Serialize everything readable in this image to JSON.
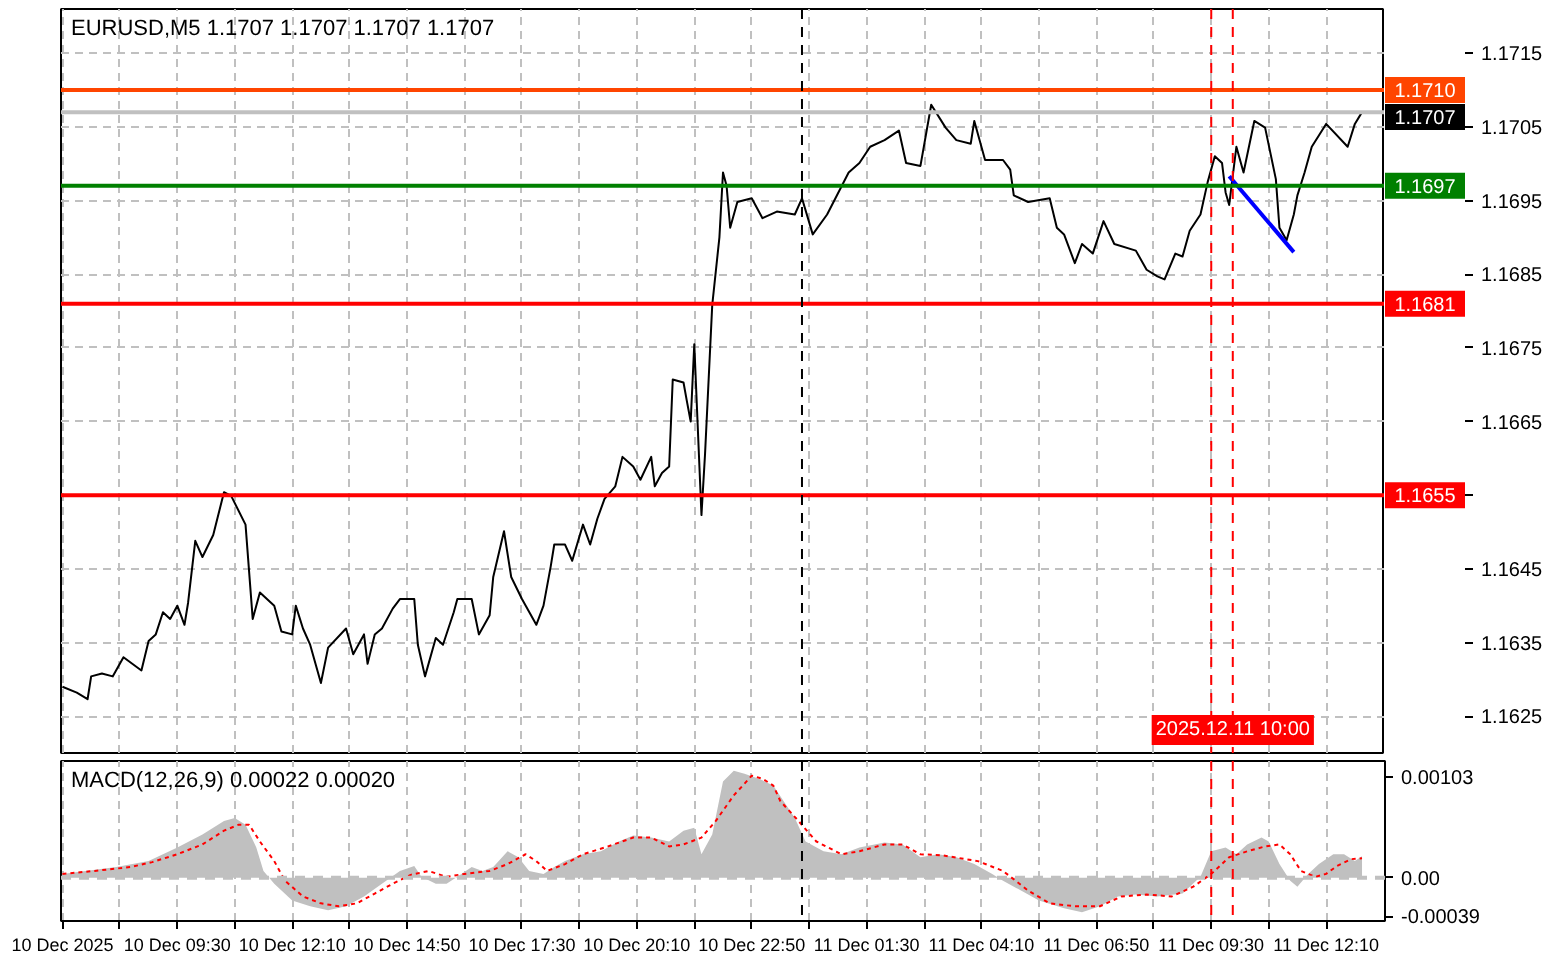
{
  "chart_data": [
    {
      "type": "line",
      "title": "EURUSD,M5 1.1707 1.1707 1.1707 1.1707",
      "xlim": [
        "2025-12-10T06:48",
        "2025-12-11T13:32"
      ],
      "ylim": [
        1.162,
        1.1721
      ],
      "xticks": [
        "2025-12-10T06:50",
        "2025-12-10T08:10",
        "2025-12-10T09:30",
        "2025-12-10T10:50",
        "2025-12-10T12:10",
        "2025-12-10T13:30",
        "2025-12-10T14:50",
        "2025-12-10T16:10",
        "2025-12-10T17:30",
        "2025-12-10T18:50",
        "2025-12-10T20:10",
        "2025-12-10T21:30",
        "2025-12-10T22:50",
        "2025-12-11T00:10",
        "2025-12-11T01:30",
        "2025-12-11T02:50",
        "2025-12-11T04:10",
        "2025-12-11T05:30",
        "2025-12-11T06:50",
        "2025-12-11T08:10",
        "2025-12-11T09:30",
        "2025-12-11T10:50",
        "2025-12-11T12:10"
      ],
      "yticks": [
        1.1625,
        1.1635,
        1.1645,
        {
          "value": 1.1655,
          "label": null
        },
        1.1665,
        1.1675,
        1.1685,
        1.1695,
        1.1705,
        1.1715
      ],
      "tick_labels": "y",
      "grid": true,
      "series": [
        {
          "color": "#000000",
          "x": [
            "2025-12-10T06:50",
            "2025-12-10T07:10",
            "2025-12-10T07:25",
            "2025-12-10T07:30",
            "2025-12-10T07:45",
            "2025-12-10T08:00",
            "2025-12-10T08:15",
            "2025-12-10T08:40",
            "2025-12-10T08:50",
            "2025-12-10T09:00",
            "2025-12-10T09:10",
            "2025-12-10T09:20",
            "2025-12-10T09:30",
            "2025-12-10T09:40",
            "2025-12-10T09:45",
            "2025-12-10T09:55",
            "2025-12-10T10:05",
            "2025-12-10T10:20",
            "2025-12-10T10:35",
            "2025-12-10T10:45",
            "2025-12-10T11:05",
            "2025-12-10T11:15",
            "2025-12-10T11:25",
            "2025-12-10T11:45",
            "2025-12-10T11:55",
            "2025-12-10T12:10",
            "2025-12-10T12:15",
            "2025-12-10T12:25",
            "2025-12-10T12:35",
            "2025-12-10T12:50",
            "2025-12-10T13:00",
            "2025-12-10T13:25",
            "2025-12-10T13:35",
            "2025-12-10T13:50",
            "2025-12-10T13:55",
            "2025-12-10T14:05",
            "2025-12-10T14:15",
            "2025-12-10T14:30",
            "2025-12-10T14:40",
            "2025-12-10T15:00",
            "2025-12-10T15:05",
            "2025-12-10T15:15",
            "2025-12-10T15:30",
            "2025-12-10T15:40",
            "2025-12-10T15:55",
            "2025-12-10T16:00",
            "2025-12-10T16:20",
            "2025-12-10T16:30",
            "2025-12-10T16:45",
            "2025-12-10T16:50",
            "2025-12-10T17:05",
            "2025-12-10T17:15",
            "2025-12-10T17:30",
            "2025-12-10T17:50",
            "2025-12-10T18:00",
            "2025-12-10T18:10",
            "2025-12-10T18:15",
            "2025-12-10T18:30",
            "2025-12-10T18:40",
            "2025-12-10T18:55",
            "2025-12-10T19:05",
            "2025-12-10T19:15",
            "2025-12-10T19:25",
            "2025-12-10T19:40",
            "2025-12-10T19:50",
            "2025-12-10T20:05",
            "2025-12-10T20:15",
            "2025-12-10T20:30",
            "2025-12-10T20:35",
            "2025-12-10T20:45",
            "2025-12-10T20:55",
            "2025-12-10T21:00",
            "2025-12-10T21:15",
            "2025-12-10T21:20",
            "2025-12-10T21:25",
            "2025-12-10T21:30",
            "2025-12-10T21:40",
            "2025-12-10T21:45",
            "2025-12-10T21:55",
            "2025-12-10T22:05",
            "2025-12-10T22:10",
            "2025-12-10T22:15",
            "2025-12-10T22:20",
            "2025-12-10T22:30",
            "2025-12-10T22:50",
            "2025-12-10T23:05",
            "2025-12-10T23:25",
            "2025-12-10T23:50",
            "2025-12-11T00:00",
            "2025-12-11T00:15",
            "2025-12-11T00:35",
            "2025-12-11T01:05",
            "2025-12-11T01:20",
            "2025-12-11T01:35",
            "2025-12-11T01:55",
            "2025-12-11T02:15",
            "2025-12-11T02:25",
            "2025-12-11T02:45",
            "2025-12-11T03:00",
            "2025-12-11T03:20",
            "2025-12-11T03:35",
            "2025-12-11T03:55",
            "2025-12-11T04:00",
            "2025-12-11T04:15",
            "2025-12-11T04:40",
            "2025-12-11T04:50",
            "2025-12-11T04:55",
            "2025-12-11T05:15",
            "2025-12-11T05:45",
            "2025-12-11T05:55",
            "2025-12-11T06:05",
            "2025-12-11T06:20",
            "2025-12-11T06:30",
            "2025-12-11T06:45",
            "2025-12-11T07:00",
            "2025-12-11T07:15",
            "2025-12-11T07:45",
            "2025-12-11T08:00",
            "2025-12-11T08:15",
            "2025-12-11T08:25",
            "2025-12-11T08:40",
            "2025-12-11T08:50",
            "2025-12-11T09:00",
            "2025-12-11T09:15",
            "2025-12-11T09:25",
            "2025-12-11T09:35",
            "2025-12-11T09:45",
            "2025-12-11T09:50",
            "2025-12-11T09:55",
            "2025-12-11T10:05",
            "2025-12-11T10:15",
            "2025-12-11T10:30",
            "2025-12-11T10:45",
            "2025-12-11T11:00",
            "2025-12-11T11:05",
            "2025-12-11T11:15",
            "2025-12-11T11:25",
            "2025-12-11T11:30",
            "2025-12-11T11:40",
            "2025-12-11T11:50",
            "2025-12-11T12:10",
            "2025-12-11T12:40",
            "2025-12-11T12:50",
            "2025-12-11T13:00"
          ],
          "values": [
            1.1629,
            1.16282,
            1.16273,
            1.16304,
            1.16308,
            1.16304,
            1.1633,
            1.16312,
            1.16352,
            1.16361,
            1.16391,
            1.16382,
            1.164,
            1.16374,
            1.16404,
            1.16488,
            1.16466,
            1.16496,
            1.16554,
            1.16549,
            1.1651,
            1.16382,
            1.16418,
            1.164,
            1.16365,
            1.16361,
            1.164,
            1.16369,
            1.16347,
            1.16295,
            1.16343,
            1.16369,
            1.16334,
            1.16361,
            1.16321,
            1.16361,
            1.16369,
            1.16396,
            1.16409,
            1.16409,
            1.16347,
            1.16304,
            1.16356,
            1.16347,
            1.16391,
            1.16409,
            1.16409,
            1.16361,
            1.16387,
            1.16439,
            1.16501,
            1.16439,
            1.16409,
            1.16374,
            1.164,
            1.16453,
            1.16483,
            1.16483,
            1.16461,
            1.1651,
            1.16483,
            1.16518,
            1.16545,
            1.16562,
            1.16602,
            1.16589,
            1.16571,
            1.16602,
            1.16562,
            1.1658,
            1.16589,
            1.16707,
            1.16703,
            1.16676,
            1.1665,
            1.16755,
            1.16523,
            1.16606,
            1.16808,
            1.169,
            1.16988,
            1.1697,
            1.16913,
            1.16948,
            1.16953,
            1.16926,
            1.16935,
            1.16931,
            1.16953,
            1.16904,
            1.16931,
            1.16988,
            1.17001,
            1.17023,
            1.17032,
            1.17045,
            1.17001,
            1.16997,
            1.1708,
            1.17049,
            1.17032,
            1.17027,
            1.17058,
            1.17005,
            1.17005,
            1.16992,
            1.16957,
            1.16948,
            1.16953,
            1.16913,
            1.16904,
            1.16865,
            1.16891,
            1.16878,
            1.16922,
            1.16891,
            1.16882,
            1.16856,
            1.16847,
            1.16843,
            1.16878,
            1.16874,
            1.16909,
            1.16931,
            1.16975,
            1.1701,
            1.17001,
            1.16961,
            1.16944,
            1.17023,
            1.16988,
            1.17058,
            1.17049,
            1.16979,
            1.16913,
            1.16896,
            1.16931,
            1.16957,
            1.16988,
            1.17023,
            1.17054,
            1.17023,
            1.17054,
            1.1707
          ]
        },
        {
          "color": "#0000ff",
          "x": [
            "2025-12-11T09:55",
            "2025-12-11T11:25"
          ],
          "values": [
            1.16983,
            1.1688
          ]
        }
      ],
      "ref_lines": [
        {
          "axis": "y",
          "value": 1.171,
          "label": "1.1710",
          "color": "#ff4500"
        },
        {
          "axis": "y",
          "value": 1.1707,
          "label": "1.1707",
          "color": "#c0c0c0"
        },
        {
          "axis": "y",
          "value": 1.1697,
          "label": "1.1697",
          "color": "#008000"
        },
        {
          "axis": "y",
          "value": 1.1681,
          "label": "1.1681",
          "color": "#ff0000"
        },
        {
          "axis": "y",
          "value": 1.1655,
          "label": "1.1655",
          "color": "#ff0000"
        },
        {
          "axis": "x",
          "value": "2025-12-11T00:00",
          "color": "#000000",
          "line_style": "dashed"
        },
        {
          "axis": "x",
          "value": "2025-12-11T09:30",
          "color": "#ff0000",
          "line_style": "dashed"
        },
        {
          "axis": "x",
          "value": "2025-12-11T10:00",
          "color": "#ff0000",
          "line_style": "dashed",
          "label": "2025.12.11 10:00"
        }
      ]
    },
    {
      "type": "area",
      "title": "MACD(12,26,9) 0.00022 0.00020",
      "xlim": [
        "2025-12-10T06:48",
        "2025-12-11T13:32"
      ],
      "ylim": [
        -0.00044,
        0.00119
      ],
      "xticks": [
        {
          "value": "2025-12-10T06:50",
          "label": "10 Dec 2025"
        },
        {
          "value": "2025-12-10T08:10",
          "label": null
        },
        {
          "value": "2025-12-10T09:30",
          "label": "10 Dec 09:30"
        },
        {
          "value": "2025-12-10T10:50",
          "label": null
        },
        {
          "value": "2025-12-10T12:10",
          "label": "10 Dec 12:10"
        },
        {
          "value": "2025-12-10T13:30",
          "label": null
        },
        {
          "value": "2025-12-10T14:50",
          "label": "10 Dec 14:50"
        },
        {
          "value": "2025-12-10T16:10",
          "label": null
        },
        {
          "value": "2025-12-10T17:30",
          "label": "10 Dec 17:30"
        },
        {
          "value": "2025-12-10T18:50",
          "label": null
        },
        {
          "value": "2025-12-10T20:10",
          "label": "10 Dec 20:10"
        },
        {
          "value": "2025-12-10T21:30",
          "label": null
        },
        {
          "value": "2025-12-10T22:50",
          "label": "10 Dec 22:50"
        },
        {
          "value": "2025-12-11T00:10",
          "label": null
        },
        {
          "value": "2025-12-11T01:30",
          "label": "11 Dec 01:30"
        },
        {
          "value": "2025-12-11T02:50",
          "label": null
        },
        {
          "value": "2025-12-11T04:10",
          "label": "11 Dec 04:10"
        },
        {
          "value": "2025-12-11T05:30",
          "label": null
        },
        {
          "value": "2025-12-11T06:50",
          "label": "11 Dec 06:50"
        },
        {
          "value": "2025-12-11T08:10",
          "label": null
        },
        {
          "value": "2025-12-11T09:30",
          "label": "11 Dec 09:30"
        },
        {
          "value": "2025-12-11T10:50",
          "label": null
        },
        {
          "value": "2025-12-11T12:10",
          "label": "11 Dec 12:10"
        }
      ],
      "yticks": [
        -0.00039,
        {
          "value": 0,
          "label": "0.00"
        },
        0.00103
      ],
      "grid": "x",
      "series": [
        {
          "color": "#c0c0c0",
          "x": [
            "2025-12-10T06:50",
            "2025-12-10T08:05",
            "2025-12-10T08:50",
            "2025-12-10T09:30",
            "2025-12-10T10:05",
            "2025-12-10T10:35",
            "2025-12-10T10:50",
            "2025-12-10T11:05",
            "2025-12-10T11:20",
            "2025-12-10T11:30",
            "2025-12-10T11:45",
            "2025-12-10T12:10",
            "2025-12-10T12:35",
            "2025-12-10T13:00",
            "2025-12-10T13:25",
            "2025-12-10T13:50",
            "2025-12-10T14:15",
            "2025-12-10T14:40",
            "2025-12-10T15:00",
            "2025-12-10T15:10",
            "2025-12-10T15:30",
            "2025-12-10T15:45",
            "2025-12-10T16:00",
            "2025-12-10T16:20",
            "2025-12-10T16:35",
            "2025-12-10T16:50",
            "2025-12-10T17:10",
            "2025-12-10T17:25",
            "2025-12-10T17:40",
            "2025-12-10T18:00",
            "2025-12-10T18:15",
            "2025-12-10T18:30",
            "2025-12-10T18:55",
            "2025-12-10T19:20",
            "2025-12-10T19:45",
            "2025-12-10T20:05",
            "2025-12-10T20:30",
            "2025-12-10T20:55",
            "2025-12-10T21:15",
            "2025-12-10T21:30",
            "2025-12-10T21:40",
            "2025-12-10T21:55",
            "2025-12-10T22:10",
            "2025-12-10T22:25",
            "2025-12-10T22:40",
            "2025-12-10T23:00",
            "2025-12-10T23:20",
            "2025-12-10T23:50",
            "2025-12-11T00:05",
            "2025-12-11T00:30",
            "2025-12-11T00:55",
            "2025-12-11T01:20",
            "2025-12-11T01:55",
            "2025-12-11T02:20",
            "2025-12-11T02:45",
            "2025-12-11T03:10",
            "2025-12-11T03:35",
            "2025-12-11T04:00",
            "2025-12-11T04:25",
            "2025-12-11T04:40",
            "2025-12-11T05:05",
            "2025-12-11T05:30",
            "2025-12-11T06:05",
            "2025-12-11T06:30",
            "2025-12-11T06:55",
            "2025-12-11T07:20",
            "2025-12-11T07:45",
            "2025-12-11T08:15",
            "2025-12-11T08:50",
            "2025-12-11T09:15",
            "2025-12-11T09:30",
            "2025-12-11T09:50",
            "2025-12-11T10:05",
            "2025-12-11T10:20",
            "2025-12-11T10:40",
            "2025-12-11T10:50",
            "2025-12-11T11:05",
            "2025-12-11T11:20",
            "2025-12-11T11:30",
            "2025-12-11T11:45",
            "2025-12-11T12:00",
            "2025-12-11T12:20",
            "2025-12-11T12:35",
            "2025-12-11T12:50",
            "2025-12-11T13:00"
          ],
          "values": [
            4e-05,
            0.00011,
            0.00017,
            0.00031,
            0.00044,
            0.00058,
            0.00061,
            0.00054,
            0.00031,
            7e-05,
            -6e-05,
            -0.00023,
            -0.00029,
            -0.00033,
            -0.00029,
            -0.00019,
            -6e-05,
            7e-05,
            0.00012,
            1e-05,
            -6e-05,
            -6e-05,
            1e-05,
            0.00011,
            7e-05,
            0.00011,
            0.00027,
            0.00021,
            7e-05,
            4e-05,
            0.00011,
            0.00017,
            0.00024,
            0.00027,
            0.00037,
            0.00043,
            0.00041,
            0.00037,
            0.00048,
            0.00051,
            0.00024,
            0.00044,
            0.00098,
            0.00109,
            0.00106,
            0.00101,
            0.00094,
            0.00061,
            0.00037,
            0.00027,
            0.00024,
            0.00031,
            0.00036,
            0.00034,
            0.00021,
            0.00024,
            0.00021,
            0.00014,
            4e-05,
            -3e-05,
            -0.00013,
            -0.00023,
            -0.00031,
            -0.00035,
            -0.00029,
            -0.00019,
            -0.00017,
            -0.00019,
            -0.00016,
            1e-05,
            0.00027,
            0.00031,
            0.00024,
            0.00034,
            0.00041,
            0.00037,
            0.00014,
            -3e-05,
            -9e-05,
            4e-05,
            0.00014,
            0.00024,
            0.00024,
            0.00017,
            0.00022
          ]
        },
        {
          "type": "line",
          "color": "#ff0000",
          "line_style": "dotted",
          "x": [
            "2025-12-10T06:50",
            "2025-12-10T07:35",
            "2025-12-10T08:25",
            "2025-12-10T08:55",
            "2025-12-10T09:30",
            "2025-12-10T10:05",
            "2025-12-10T10:35",
            "2025-12-10T10:55",
            "2025-12-10T11:10",
            "2025-12-10T11:25",
            "2025-12-10T11:45",
            "2025-12-10T12:00",
            "2025-12-10T12:25",
            "2025-12-10T12:50",
            "2025-12-10T13:15",
            "2025-12-10T13:40",
            "2025-12-10T14:05",
            "2025-12-10T14:30",
            "2025-12-10T14:55",
            "2025-12-10T15:20",
            "2025-12-10T15:45",
            "2025-12-10T16:10",
            "2025-12-10T16:45",
            "2025-12-10T17:10",
            "2025-12-10T17:35",
            "2025-12-10T17:50",
            "2025-12-10T18:05",
            "2025-12-10T18:30",
            "2025-12-10T18:55",
            "2025-12-10T19:30",
            "2025-12-10T20:05",
            "2025-12-10T20:30",
            "2025-12-10T20:55",
            "2025-12-10T21:15",
            "2025-12-10T21:40",
            "2025-12-10T22:00",
            "2025-12-10T22:25",
            "2025-12-10T22:50",
            "2025-12-10T23:05",
            "2025-12-10T23:20",
            "2025-12-10T23:30",
            "2025-12-10T23:55",
            "2025-12-11T00:20",
            "2025-12-11T00:55",
            "2025-12-11T01:20",
            "2025-12-11T01:55",
            "2025-12-11T02:20",
            "2025-12-11T02:45",
            "2025-12-11T03:15",
            "2025-12-11T04:05",
            "2025-12-11T04:40",
            "2025-12-11T05:15",
            "2025-12-11T05:45",
            "2025-12-11T06:20",
            "2025-12-11T06:55",
            "2025-12-11T07:25",
            "2025-12-11T08:00",
            "2025-12-11T08:35",
            "2025-12-11T09:05",
            "2025-12-11T09:30",
            "2025-12-11T09:55",
            "2025-12-11T10:20",
            "2025-12-11T10:45",
            "2025-12-11T11:05",
            "2025-12-11T11:20",
            "2025-12-11T11:35",
            "2025-12-11T11:55",
            "2025-12-11T12:10",
            "2025-12-11T12:25",
            "2025-12-11T12:45",
            "2025-12-11T13:00"
          ],
          "values": [
            4e-05,
            7e-05,
            0.00011,
            0.00016,
            0.00024,
            0.00034,
            0.00048,
            0.00054,
            0.00054,
            0.00037,
            0.00017,
            -3e-05,
            -0.00019,
            -0.00026,
            -0.00029,
            -0.00026,
            -0.00016,
            -6e-05,
            3e-05,
            7e-05,
            1e-05,
            4e-05,
            7e-05,
            0.00014,
            0.00024,
            0.00017,
            7e-05,
            0.00014,
            0.00024,
            0.00032,
            0.00041,
            0.00041,
            0.00032,
            0.00034,
            0.00041,
            0.00058,
            0.00084,
            0.00104,
            0.00101,
            0.00094,
            0.00078,
            0.00058,
            0.00037,
            0.00024,
            0.00027,
            0.00034,
            0.00034,
            0.00024,
            0.00023,
            0.00017,
            7e-05,
            -0.00013,
            -0.00026,
            -0.00029,
            -0.00029,
            -0.00019,
            -0.00017,
            -0.00019,
            -9e-05,
            4e-05,
            0.00021,
            0.00027,
            0.00032,
            0.00034,
            0.00024,
            7e-05,
            1e-05,
            4e-05,
            0.00012,
            0.00019,
            0.0002
          ]
        }
      ],
      "ref_lines": [
        {
          "axis": "y",
          "value": 0,
          "color": "#c0c0c0",
          "line_style": "dashed"
        },
        {
          "axis": "x",
          "value": "2025-12-11T00:00",
          "color": "#000000",
          "line_style": "dashed"
        },
        {
          "axis": "x",
          "value": "2025-12-11T09:30",
          "color": "#ff0000",
          "line_style": "dashed"
        },
        {
          "axis": "x",
          "value": "2025-12-11T10:00",
          "color": "#ff0000",
          "line_style": "dashed"
        }
      ]
    }
  ]
}
